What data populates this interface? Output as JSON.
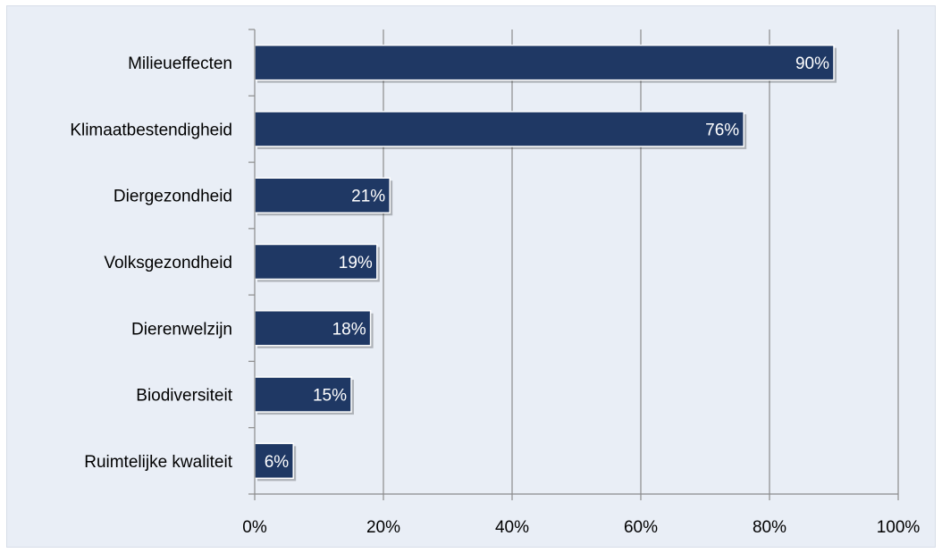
{
  "chart_data": {
    "type": "bar",
    "orientation": "horizontal",
    "categories": [
      "Milieueffecten",
      "Klimaatbestendigheid",
      "Diergezondheid",
      "Volksgezondheid",
      "Dierenwelzijn",
      "Biodiversiteit",
      "Ruimtelijke kwaliteit"
    ],
    "values": [
      90,
      76,
      21,
      19,
      18,
      15,
      6
    ],
    "data_labels": [
      "90%",
      "76%",
      "21%",
      "19%",
      "18%",
      "15%",
      "6%"
    ],
    "xlim": [
      0,
      100
    ],
    "x_ticks": [
      0,
      20,
      40,
      60,
      80,
      100
    ],
    "x_tick_labels": [
      "0%",
      "20%",
      "40%",
      "60%",
      "80%",
      "100%"
    ],
    "grid": true,
    "legend": "none",
    "colors": {
      "bar": "#1f3864",
      "bar_edge": "#ffffff",
      "background": "#e9eef6",
      "gridline": "#8c8c8c",
      "data_label": "#ffffff"
    }
  }
}
